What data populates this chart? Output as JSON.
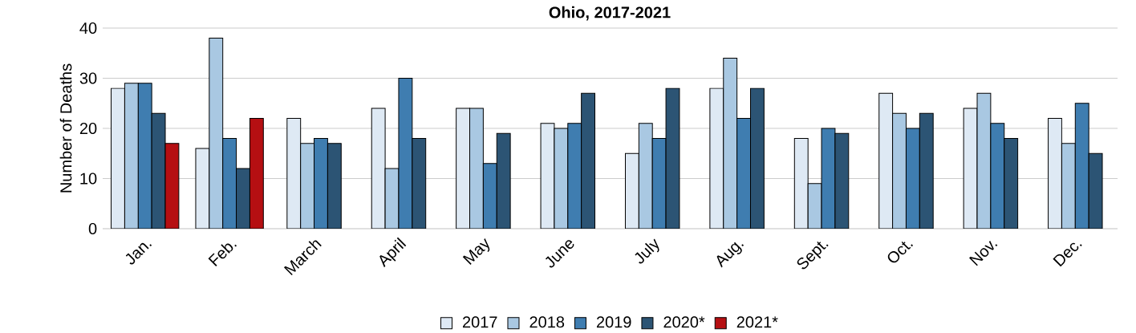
{
  "chart_data": {
    "type": "bar",
    "title": "Ohio, 2017-2021",
    "ylabel": "Number of Deaths",
    "categories": [
      "Jan.",
      "Feb.",
      "March",
      "April",
      "May",
      "June",
      "July",
      "Aug.",
      "Sept.",
      "Oct.",
      "Nov.",
      "Dec."
    ],
    "series": [
      {
        "name": "2017",
        "color": "#dee9f4",
        "values": [
          28,
          16,
          22,
          24,
          24,
          21,
          15,
          28,
          18,
          27,
          24,
          22
        ]
      },
      {
        "name": "2018",
        "color": "#a9c8e2",
        "values": [
          29,
          38,
          17,
          12,
          24,
          20,
          21,
          34,
          9,
          23,
          27,
          17
        ]
      },
      {
        "name": "2019",
        "color": "#3f7db0",
        "values": [
          29,
          18,
          18,
          30,
          13,
          21,
          18,
          22,
          20,
          20,
          21,
          25
        ]
      },
      {
        "name": "2020*",
        "color": "#2c5474",
        "values": [
          23,
          12,
          17,
          18,
          19,
          27,
          28,
          28,
          19,
          23,
          18,
          15
        ]
      },
      {
        "name": "2021*",
        "color": "#b50f12",
        "values": [
          17,
          22,
          null,
          null,
          null,
          null,
          null,
          null,
          null,
          null,
          null,
          null
        ]
      }
    ],
    "ylim": [
      0,
      40
    ],
    "yticks": [
      0,
      10,
      20,
      30,
      40
    ],
    "grid": "y",
    "legend": "bottom"
  }
}
